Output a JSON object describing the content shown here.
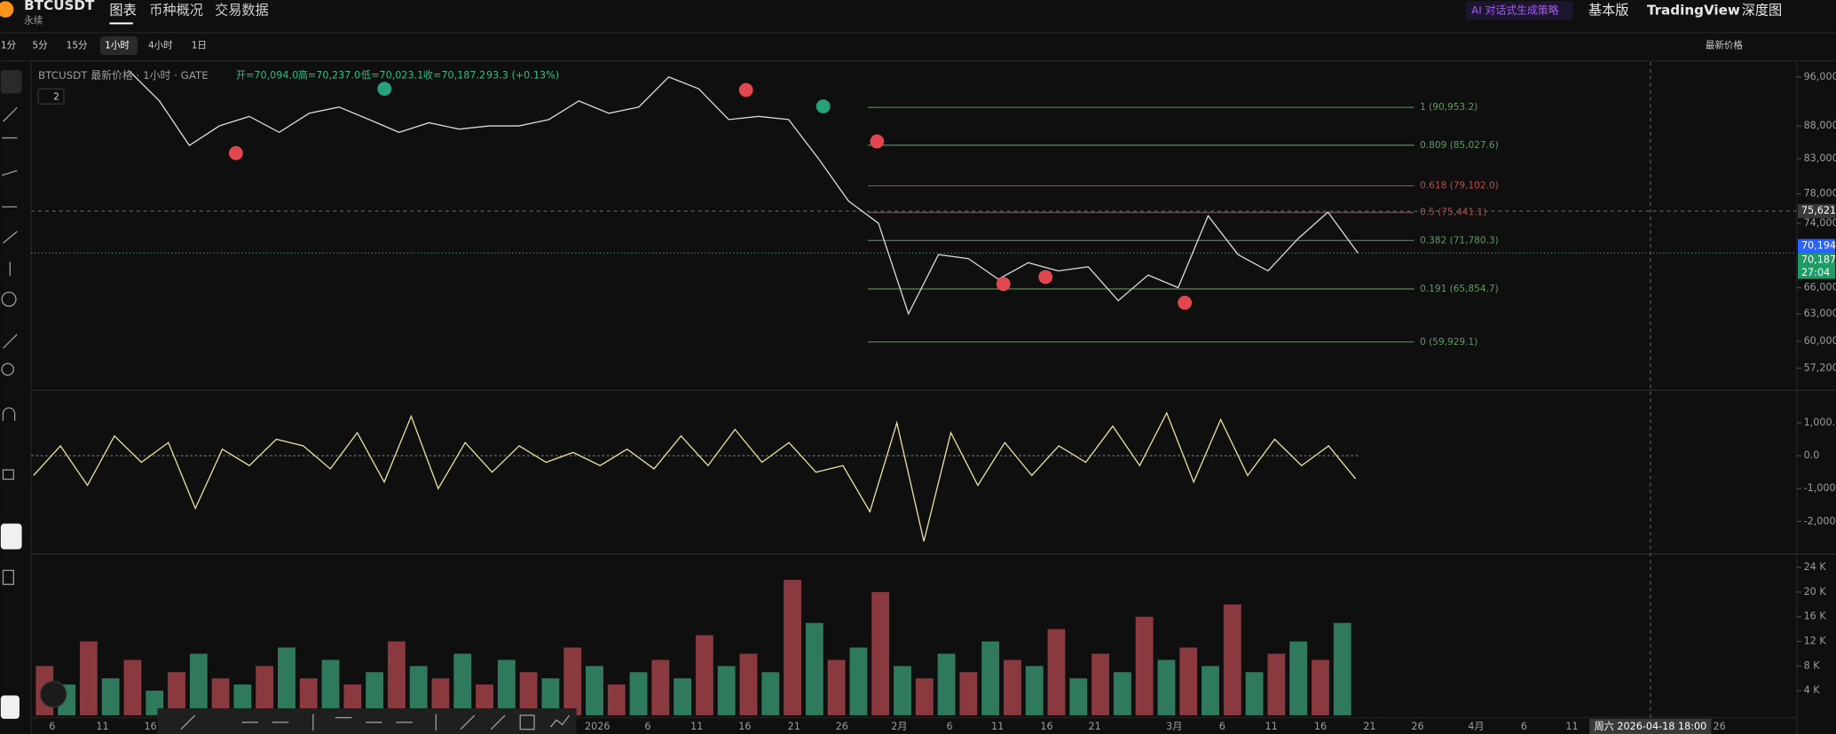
{
  "header": {
    "symbol": "BTCUSDT",
    "contract": "永续",
    "tabs": [
      "图表",
      "币种概况",
      "交易数据"
    ],
    "ai_button": "AI 对话式生成策略",
    "right_tabs": [
      "基本版",
      "TradingView",
      "深度图"
    ]
  },
  "toolbar": {
    "intervals": [
      "1分",
      "5分",
      "15分",
      "1小时",
      "4小时",
      "1日"
    ],
    "price_mode": "最新价格"
  },
  "legend": {
    "title": "BTCUSDT 最新价格 · 1小时 · GATE",
    "open": "开=70,094.0",
    "high": "高=70,237.0",
    "low": "低=70,023.1",
    "close": "收=70,187.2",
    "change": "93.3 (+0.13%)",
    "indicator_count": "2"
  },
  "chart_data": {
    "type": "line",
    "price_scale": "log",
    "color": "#d9d9d9",
    "ylim": [
      55100,
      98600
    ],
    "yticks": [
      {
        "value": 96000,
        "label": "96,000"
      },
      {
        "value": 88000,
        "label": "88,000"
      },
      {
        "value": 83000,
        "label": "83,000"
      },
      {
        "value": 78000,
        "label": "78,000"
      },
      {
        "value": 74000,
        "label": "74,000"
      },
      {
        "value": 66000,
        "label": "66,000"
      },
      {
        "value": 63000,
        "label": "63,000"
      },
      {
        "value": 60000,
        "label": "60,000"
      },
      {
        "value": 57200,
        "label": "57,200"
      }
    ],
    "values": [
      97000,
      92000,
      85000,
      88000,
      89500,
      87000,
      90000,
      91000,
      89000,
      87000,
      88500,
      87500,
      88000,
      88000,
      89000,
      92000,
      90000,
      91000,
      96000,
      94000,
      89000,
      89500,
      89000,
      83000,
      77000,
      74000,
      63000,
      70000,
      69500,
      67000,
      69000,
      68000,
      68500,
      64500,
      67500,
      66000,
      75000,
      70000,
      68000,
      72000,
      75500,
      70200
    ],
    "fib_levels": [
      {
        "label": "1 (90,953.2)",
        "price": 90953.2,
        "color": "#5f9a63"
      },
      {
        "label": "0.809 (85,027.6)",
        "price": 85027.6,
        "color": "#5f9a63"
      },
      {
        "label": "0.618 (79,102.0)",
        "price": 79102.0,
        "color": "#c24b4b"
      },
      {
        "label": "0.5 (75,441.1)",
        "price": 75441.1,
        "color": "#c24b4b"
      },
      {
        "label": "0.382 (71,780.3)",
        "price": 71780.3,
        "color": "#5f9a63"
      },
      {
        "label": "0.191 (65,854.7)",
        "price": 65854.7,
        "color": "#5f9a63"
      },
      {
        "label": "0 (59,929.1)",
        "price": 59929.1,
        "color": "#5f9a63"
      }
    ],
    "price_labels": [
      {
        "value": 75621,
        "label": "75,621",
        "color": "#3a3a3a"
      },
      {
        "value": 70194,
        "label": "70,194",
        "color": "#2962ff"
      },
      {
        "value": 70187,
        "label": "70,187",
        "color": "#1e9b66"
      }
    ],
    "countdown": "27:04",
    "crosshair_time": "周六 2026-04-18 18:00",
    "time_labels": [
      "6",
      "11",
      "16",
      "2026",
      "6",
      "11",
      "16",
      "21",
      "26",
      "2月",
      "6",
      "11",
      "16",
      "21",
      "3月",
      "6",
      "11",
      "16",
      "21",
      "26",
      "4月",
      "6",
      "11",
      "26"
    ],
    "macd": {
      "color": "#e8e0a0",
      "ylim": [
        -2950,
        1950
      ],
      "yticks": [
        {
          "value": 1000,
          "label": "1,000.0"
        },
        {
          "value": 0,
          "label": "0.0"
        },
        {
          "value": -1000,
          "label": "-1,000."
        },
        {
          "value": -2000,
          "label": "-2,000."
        }
      ],
      "values": [
        -600,
        300,
        -900,
        600,
        -200,
        400,
        -1600,
        200,
        -300,
        500,
        300,
        -400,
        700,
        -800,
        1200,
        -1000,
        400,
        -500,
        300,
        -200,
        100,
        -300,
        200,
        -400,
        600,
        -300,
        800,
        -200,
        400,
        -500,
        -300,
        -1700,
        1000,
        -2600,
        700,
        -900,
        400,
        -600,
        300,
        -200,
        900,
        -300,
        1300,
        -800,
        1100,
        -600,
        500,
        -300,
        300,
        -700
      ]
    },
    "volume": {
      "colors": [
        "#8a3a3f",
        "#2f7a5c"
      ],
      "ylim": [
        0,
        26
      ],
      "yticks": [
        {
          "value": 24,
          "label": "24 K"
        },
        {
          "value": 20,
          "label": "20 K"
        },
        {
          "value": 16,
          "label": "16 K"
        },
        {
          "value": 12,
          "label": "12 K"
        },
        {
          "value": 8,
          "label": "8 K"
        },
        {
          "value": 4,
          "label": "4 K"
        }
      ],
      "values": [
        8,
        5,
        12,
        6,
        9,
        4,
        7,
        10,
        6,
        5,
        8,
        11,
        6,
        9,
        5,
        7,
        12,
        8,
        6,
        10,
        5,
        9,
        7,
        6,
        11,
        8,
        5,
        7,
        9,
        6,
        13,
        8,
        10,
        7,
        22,
        15,
        9,
        11,
        20,
        8,
        6,
        10,
        7,
        12,
        9,
        8,
        14,
        6,
        10,
        7,
        16,
        9,
        11,
        8,
        18,
        7,
        10,
        12,
        9,
        15
      ]
    }
  }
}
